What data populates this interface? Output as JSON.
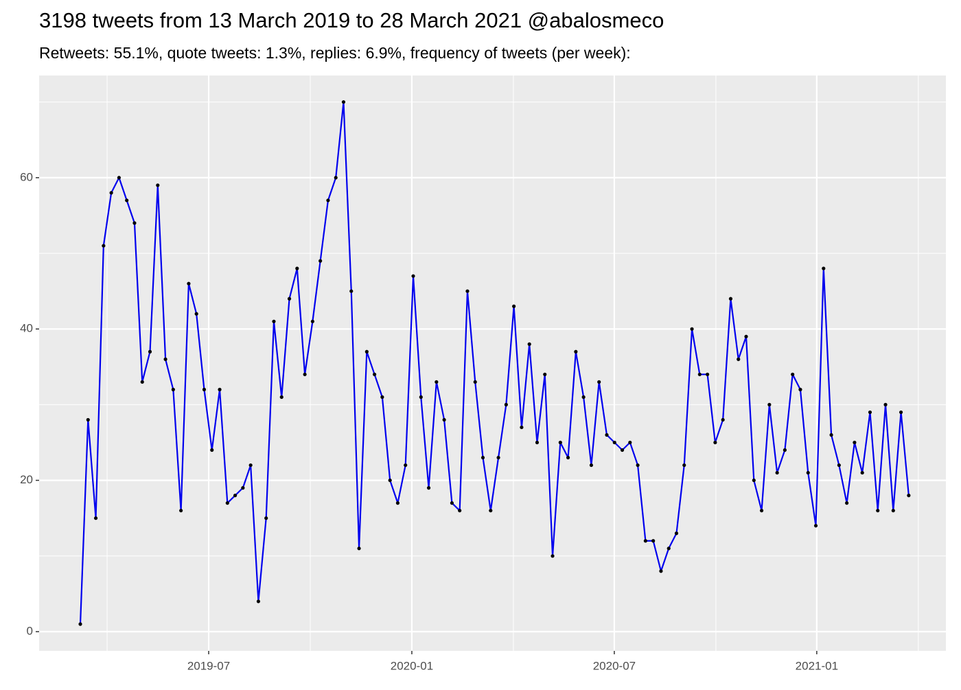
{
  "chart_data": {
    "type": "line",
    "title": "3198 tweets from 13 March 2019 to 28 March 2021 @abalosmeco",
    "subtitle": "Retweets: 55.1%, quote tweets: 1.3%, replies: 6.9%, frequency of tweets (per week):",
    "categories": [
      null,
      null,
      null,
      null,
      null,
      null,
      null,
      null,
      null,
      null,
      null,
      null,
      null,
      null,
      null,
      null,
      null,
      null,
      null,
      null,
      null,
      null,
      null,
      null,
      null,
      null,
      null,
      null,
      null,
      null,
      null,
      null,
      null,
      null,
      null,
      null,
      null,
      null,
      null,
      null,
      null,
      null,
      null,
      null,
      null,
      null,
      null,
      null,
      null,
      null,
      null,
      null,
      null,
      null,
      null,
      null,
      null,
      null,
      null,
      null,
      null,
      null,
      null,
      null,
      null,
      null,
      null,
      null,
      null,
      null,
      null,
      null,
      null,
      null,
      null,
      null,
      null,
      null,
      null,
      null,
      null,
      null,
      null,
      null,
      null,
      null,
      null,
      null,
      null,
      null,
      null,
      null,
      null,
      null,
      null,
      null,
      null,
      null,
      null,
      null,
      null,
      null,
      null,
      null,
      null,
      null,
      null,
      null
    ],
    "series": [
      {
        "name": null,
        "color": "#0000ee",
        "values": [
          1,
          28,
          15,
          51,
          58,
          60,
          57,
          54,
          33,
          37,
          59,
          36,
          32,
          16,
          46,
          42,
          32,
          24,
          32,
          17,
          18,
          19,
          22,
          4,
          15,
          41,
          31,
          44,
          48,
          34,
          41,
          49,
          57,
          60,
          70,
          45,
          11,
          37,
          34,
          31,
          20,
          17,
          22,
          47,
          31,
          19,
          33,
          28,
          17,
          16,
          45,
          33,
          23,
          16,
          23,
          30,
          43,
          27,
          38,
          25,
          34,
          10,
          25,
          23,
          37,
          31,
          22,
          33,
          26,
          25,
          24,
          25,
          22,
          12,
          12,
          8,
          11,
          13,
          22,
          40,
          34,
          34,
          25,
          28,
          44,
          36,
          39,
          20,
          16,
          30,
          21,
          24,
          34,
          32,
          21,
          14,
          48,
          26,
          22,
          17,
          25,
          21,
          29,
          16,
          30,
          16,
          29,
          18
        ]
      }
    ],
    "xlim": [
      -5.32,
      111.8
    ],
    "xticks": [
      {
        "value": 16.58,
        "label": "2019-07"
      },
      {
        "value": 42.82,
        "label": "2020-01"
      },
      {
        "value": 68.97,
        "label": "2020-07"
      },
      {
        "value": 95.12,
        "label": "2021-01"
      }
    ],
    "ylim": [
      -2.54,
      73.5
    ],
    "yticks": [
      0,
      20,
      40,
      60
    ],
    "grid": true
  }
}
